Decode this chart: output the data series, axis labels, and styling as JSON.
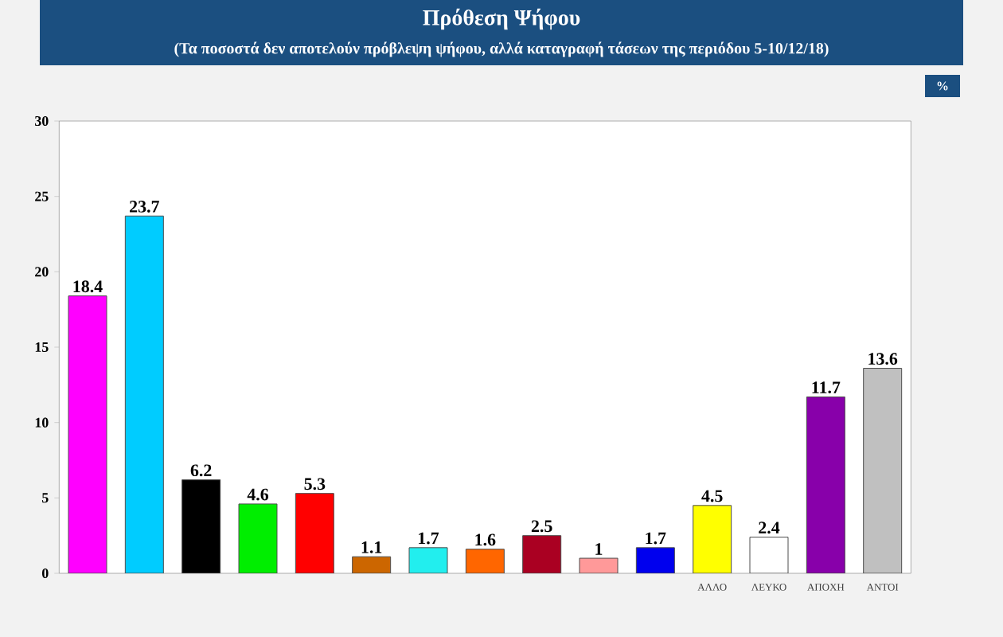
{
  "chart_data": {
    "type": "bar",
    "title": "Πρόθεση Ψήφου",
    "subtitle": "(Τα ποσοστά δεν αποτελούν πρόβλεψη ψήφου, αλλά καταγραφή τάσεων της περιόδου 5-10/12/18)",
    "ylabel": "%",
    "categories": [
      null,
      null,
      null,
      null,
      null,
      null,
      null,
      null,
      null,
      null,
      null,
      "ΑΛΛΟ",
      "ΛΕΥΚΟ",
      "ΑΠΟΧΗ",
      "ΑΝΤΟΙ"
    ],
    "values": [
      18.4,
      23.7,
      6.2,
      4.6,
      5.3,
      1.1,
      1.7,
      1.6,
      2.5,
      1,
      1.7,
      4.5,
      2.4,
      11.7,
      13.6
    ],
    "colors": [
      "#ff00ff",
      "#00ccff",
      "#000000",
      "#00ee00",
      "#ff0000",
      "#cc6600",
      "#22eeee",
      "#ff6600",
      "#aa0022",
      "#ff9999",
      "#0000ee",
      "#ffff00",
      "#ffffff",
      "#8800aa",
      "#c0c0c0"
    ],
    "ylim": [
      0,
      30
    ],
    "yticks": [
      0,
      5,
      10,
      15,
      20,
      25,
      30
    ],
    "data_labels": true
  }
}
